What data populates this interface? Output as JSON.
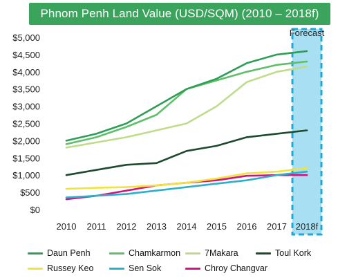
{
  "chart_data": {
    "type": "line",
    "title": "Phnom Penh Land Value (USD/SQM) (2010 – 2018f)",
    "xlabel": "",
    "ylabel": "",
    "x": [
      "2010",
      "2011",
      "2012",
      "2013",
      "2014",
      "2015",
      "2016",
      "2017",
      "2018f"
    ],
    "ylim": [
      0,
      5000
    ],
    "yticks": [
      0,
      500,
      1000,
      1500,
      2000,
      2500,
      3000,
      3500,
      4000,
      4500,
      5000
    ],
    "ytick_labels": [
      "$0",
      "$500",
      "$1,000",
      "$1,500",
      "$2,000",
      "$2,500",
      "$3,000",
      "$3,500",
      "$4,000",
      "$4,500",
      "$5,000"
    ],
    "grid": false,
    "forecast": {
      "label": "Forecast",
      "category": "2018f",
      "color": "#a8dff2",
      "border": "#1fa8d6"
    },
    "legend_position": "bottom",
    "series": [
      {
        "name": "Daun Penh",
        "color": "#2e9e57",
        "values": [
          2000,
          2200,
          2500,
          3000,
          3500,
          3800,
          4250,
          4500,
          4600
        ]
      },
      {
        "name": "Chamkarmon",
        "color": "#5fbf68",
        "values": [
          1900,
          2100,
          2400,
          2750,
          3500,
          3750,
          4000,
          4200,
          4300
        ]
      },
      {
        "name": "7Makara",
        "color": "#bfdc8a",
        "values": [
          1800,
          1950,
          2100,
          2300,
          2500,
          3000,
          3700,
          4000,
          4150
        ]
      },
      {
        "name": "Toul Kork",
        "color": "#1d4a2c",
        "values": [
          1000,
          1150,
          1300,
          1350,
          1700,
          1850,
          2100,
          2200,
          2300
        ]
      },
      {
        "name": "Russey Keo",
        "color": "#f2e33a",
        "values": [
          600,
          630,
          650,
          700,
          780,
          900,
          1050,
          1100,
          1200
        ]
      },
      {
        "name": "Sen Sok",
        "color": "#2bb0c9",
        "values": [
          350,
          400,
          450,
          550,
          650,
          750,
          850,
          1000,
          1100
        ]
      },
      {
        "name": "Chroy Changvar",
        "color": "#d4117e",
        "values": [
          300,
          400,
          550,
          700,
          780,
          850,
          980,
          1000,
          1000
        ]
      }
    ]
  }
}
